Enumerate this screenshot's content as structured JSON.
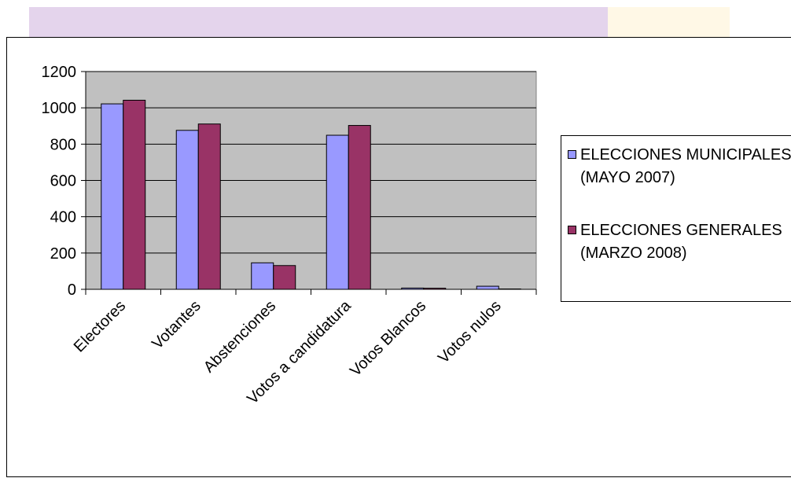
{
  "colors": {
    "series_1": "#9999ff",
    "series_2": "#993366",
    "plot_background": "#c0c0c0",
    "header_lavender": "#e4d4ec",
    "header_cream": "#fff8e6"
  },
  "legend": {
    "items": [
      {
        "label": "ELECCIONES MUNICIPALES (MAYO 2007)",
        "color": "#9999ff"
      },
      {
        "label": "ELECCIONES GENERALES (MARZO 2008)",
        "color": "#993366"
      }
    ]
  },
  "chart_data": {
    "type": "bar",
    "title": "",
    "xlabel": "",
    "ylabel": "",
    "ylim": [
      0,
      1200
    ],
    "yticks": [
      0,
      200,
      400,
      600,
      800,
      1000,
      1200
    ],
    "grid": true,
    "legend_position": "right",
    "categories": [
      "Electores",
      "Votantes",
      "Abstenciones",
      "Votos a candidatura",
      "Votos Blancos",
      "Votos nulos"
    ],
    "series": [
      {
        "name": "ELECCIONES MUNICIPALES (MAYO 2007)",
        "color": "#9999ff",
        "values": [
          1022,
          876,
          146,
          849,
          7,
          17
        ]
      },
      {
        "name": "ELECCIONES GENERALES (MARZO 2008)",
        "color": "#993366",
        "values": [
          1042,
          911,
          131,
          903,
          6,
          2
        ]
      }
    ]
  }
}
